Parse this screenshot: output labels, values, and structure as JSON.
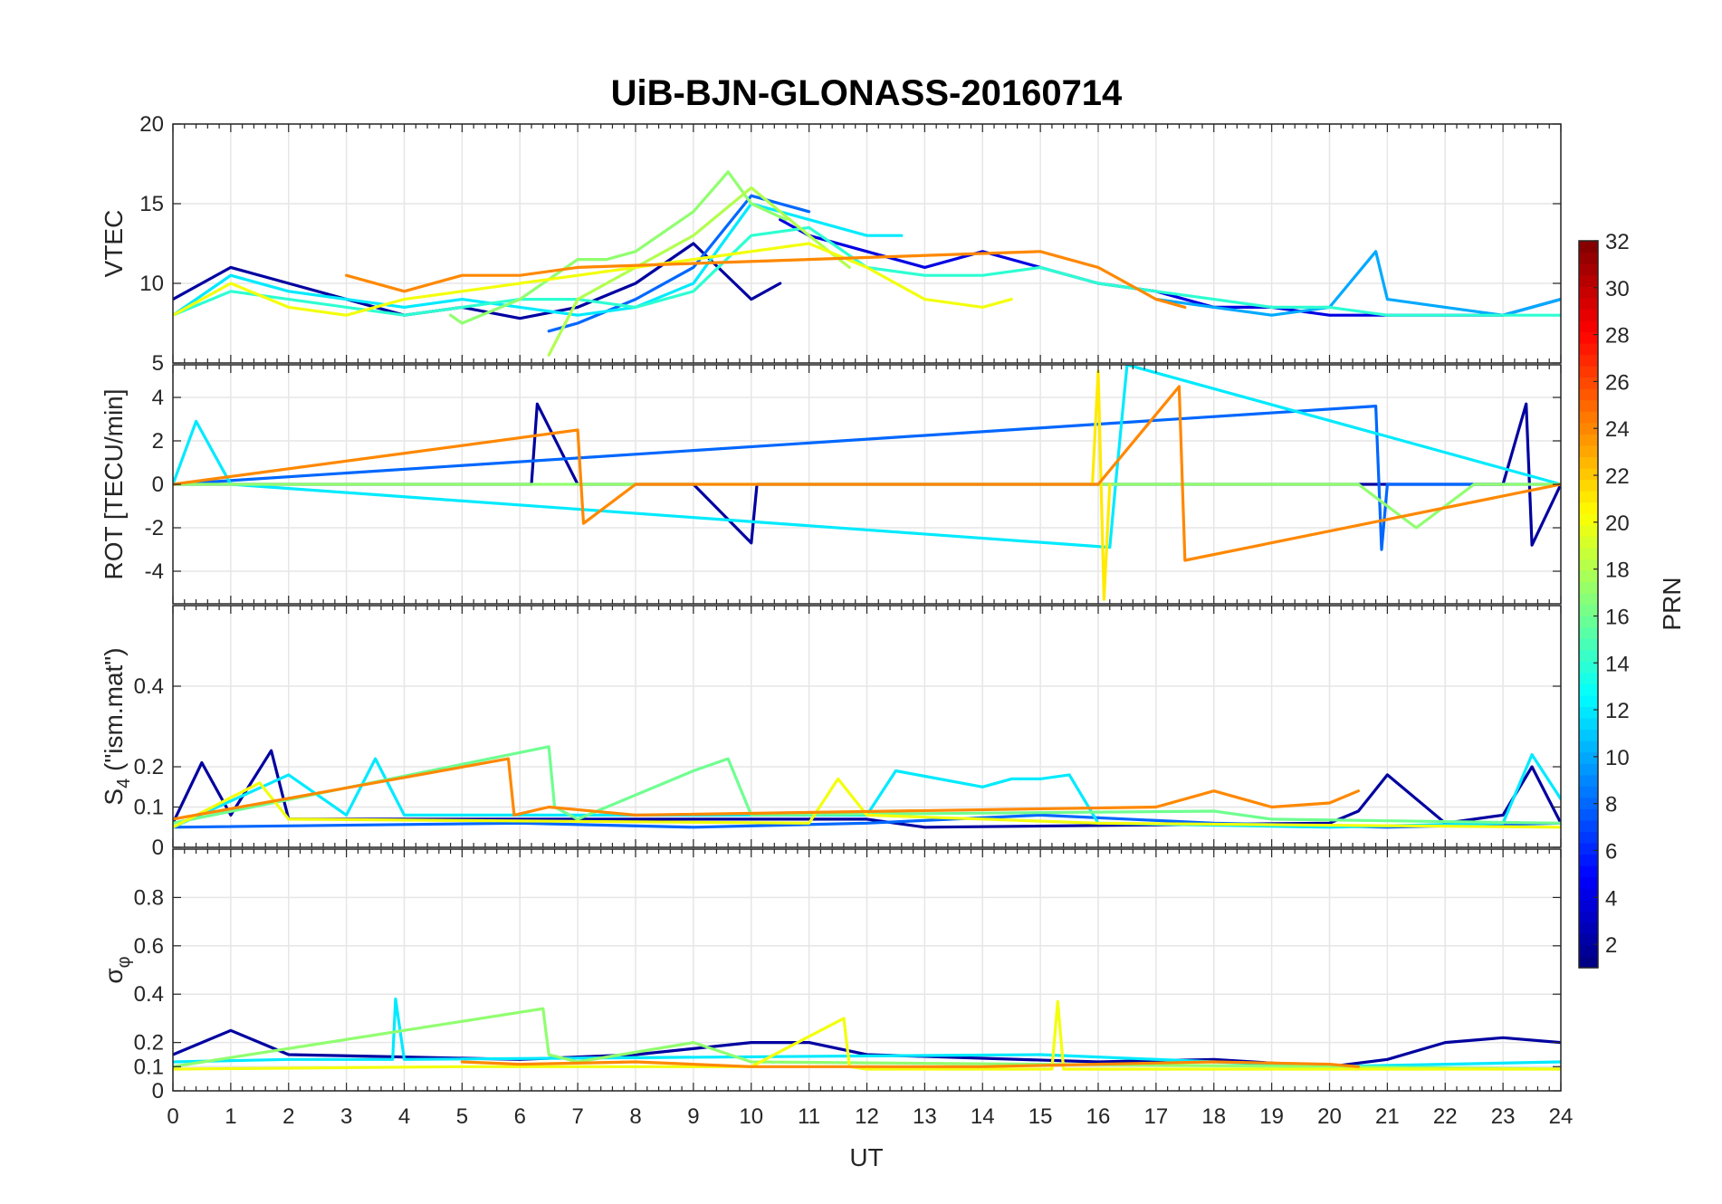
{
  "chart_data": {
    "type": "line",
    "title": "UiB-BJN-GLONASS-20160714",
    "xlabel": "UT",
    "xlim": [
      0,
      24
    ],
    "xticks": [
      0,
      1,
      2,
      3,
      4,
      5,
      6,
      7,
      8,
      9,
      10,
      11,
      12,
      13,
      14,
      15,
      16,
      17,
      18,
      19,
      20,
      21,
      22,
      23,
      24
    ],
    "grid": true,
    "colormap": "jet",
    "colorbar": {
      "label": "PRN",
      "range": [
        1,
        32
      ],
      "ticks": [
        2,
        4,
        6,
        8,
        10,
        12,
        14,
        16,
        18,
        20,
        22,
        24,
        26,
        28,
        30,
        32
      ],
      "placement": "right"
    },
    "panels": [
      {
        "id": "vtec",
        "ylabel": "VTEC",
        "ylim": [
          5,
          20
        ],
        "yticks": [
          5,
          10,
          15,
          20
        ],
        "series": [
          {
            "prn": 2,
            "x": [
              0,
              1,
              2,
              3,
              4,
              5,
              6,
              7,
              8,
              9,
              10,
              10.5
            ],
            "y": [
              9,
              11,
              10,
              9,
              8,
              8.5,
              7.8,
              8.5,
              10,
              12.5,
              9,
              10
            ]
          },
          {
            "prn": 4,
            "x": [
              10.5,
              11,
              12,
              13,
              14,
              15,
              16,
              17,
              18,
              19,
              20,
              21,
              22,
              23,
              24
            ],
            "y": [
              14,
              13,
              12,
              11,
              12,
              11,
              10,
              9.5,
              8.5,
              8.5,
              8,
              8,
              8,
              8,
              9
            ]
          },
          {
            "prn": 8,
            "x": [
              6.5,
              7,
              8,
              9,
              10,
              11
            ],
            "y": [
              7,
              7.5,
              9,
              11,
              15.5,
              14.5
            ]
          },
          {
            "prn": 10,
            "x": [
              17,
              18,
              19,
              20,
              20.8,
              21,
              22,
              23,
              24
            ],
            "y": [
              9,
              8.5,
              8,
              8.5,
              12,
              9,
              8.5,
              8,
              9
            ]
          },
          {
            "prn": 12,
            "x": [
              0,
              1,
              2,
              3,
              4,
              5,
              6,
              7,
              8,
              9,
              10,
              11,
              12,
              12.6
            ],
            "y": [
              8,
              10.5,
              9.5,
              9,
              8.5,
              9,
              8.5,
              8,
              8.5,
              10,
              15,
              14,
              13,
              13
            ]
          },
          {
            "prn": 14,
            "x": [
              0,
              1,
              2,
              3,
              4,
              5,
              6,
              7,
              8,
              9,
              10,
              11,
              12,
              13,
              14,
              15,
              16,
              17,
              18,
              19,
              20,
              21,
              22,
              23,
              24
            ],
            "y": [
              8,
              9.5,
              9,
              8.5,
              8,
              8.5,
              9,
              9,
              8.5,
              9.5,
              13,
              13.5,
              11,
              10.5,
              10.5,
              11,
              10,
              9.5,
              9,
              8.5,
              8.5,
              8,
              8,
              8,
              8
            ]
          },
          {
            "prn": 17,
            "x": [
              4.8,
              5,
              6,
              7,
              7.5,
              8,
              9,
              9.6,
              10,
              10.6
            ],
            "y": [
              8,
              7.5,
              9,
              11.5,
              11.5,
              12,
              14.5,
              17,
              15,
              14
            ]
          },
          {
            "prn": 18,
            "x": [
              6.5,
              7,
              8,
              9,
              10,
              11,
              11.7
            ],
            "y": [
              5.5,
              9,
              11,
              13,
              16,
              13,
              11
            ]
          },
          {
            "prn": 20,
            "x": [
              0,
              1,
              2,
              3,
              4,
              11,
              12,
              13,
              14,
              14.5
            ],
            "y": [
              8,
              10,
              8.5,
              8,
              9,
              12.5,
              11,
              9,
              8.5,
              9
            ]
          },
          {
            "prn": 24,
            "x": [
              3,
              4,
              5,
              6,
              7,
              15,
              16,
              17,
              17.5
            ],
            "y": [
              10.5,
              9.5,
              10.5,
              10.5,
              11,
              12,
              11,
              9,
              8.5
            ]
          }
        ]
      },
      {
        "id": "rot",
        "ylabel": "ROT [TECU/min]",
        "ylim": [
          -5.5,
          5.5
        ],
        "yticks": [
          -4,
          -2,
          0,
          2,
          4
        ],
        "series": [
          {
            "prn": 2,
            "x": [
              0,
              6.2,
              6.3,
              7,
              8,
              9,
              10,
              10.1,
              23,
              23.4,
              23.5,
              24
            ],
            "y": [
              0,
              0,
              3.7,
              0,
              0,
              0,
              -2.7,
              0,
              0,
              3.7,
              -2.8,
              0
            ]
          },
          {
            "prn": 8,
            "x": [
              0,
              20.8,
              20.9,
              21,
              24
            ],
            "y": [
              0,
              3.6,
              -3,
              0,
              0
            ]
          },
          {
            "prn": 12,
            "x": [
              0,
              0.4,
              1,
              16.2,
              16.3,
              16.5,
              24
            ],
            "y": [
              0,
              2.9,
              0,
              -2.9,
              0,
              5.5,
              0
            ]
          },
          {
            "prn": 17,
            "x": [
              0,
              12,
              13,
              20.5,
              21.5,
              22.5,
              24
            ],
            "y": [
              0,
              0,
              0,
              0,
              -2,
              0,
              0
            ]
          },
          {
            "prn": 21,
            "x": [
              15.9,
              16,
              16.1,
              16.2
            ],
            "y": [
              0,
              5.2,
              -5.3,
              0
            ]
          },
          {
            "prn": 24,
            "x": [
              0,
              7,
              7.1,
              8,
              16,
              17.4,
              17.5,
              24
            ],
            "y": [
              0,
              2.5,
              -1.8,
              0,
              0,
              4.5,
              -3.5,
              0
            ]
          }
        ]
      },
      {
        "id": "s4",
        "ylabel": "S4 (\"ism.mat\")",
        "ylabel_main": "S",
        "ylabel_sub": "4",
        "ylabel_rest": " (\"ism.mat\")",
        "ylim": [
          0,
          0.6
        ],
        "yticks": [
          0,
          0.1,
          0.2,
          0.4
        ],
        "series": [
          {
            "prn": 2,
            "x": [
              0,
              0.5,
              1,
              1.7,
              2,
              12,
              13,
              20,
              20.5,
              21,
              22,
              23,
              23.5,
              24
            ],
            "y": [
              0.06,
              0.21,
              0.08,
              0.24,
              0.07,
              0.07,
              0.05,
              0.06,
              0.09,
              0.18,
              0.06,
              0.08,
              0.2,
              0.06
            ]
          },
          {
            "prn": 8,
            "x": [
              0,
              6,
              9,
              12,
              15,
              18,
              21,
              24
            ],
            "y": [
              0.05,
              0.06,
              0.05,
              0.06,
              0.08,
              0.06,
              0.05,
              0.06
            ]
          },
          {
            "prn": 12,
            "x": [
              0,
              2,
              3,
              3.5,
              4,
              12,
              12.5,
              14,
              14.5,
              15,
              15.5,
              16,
              20,
              23,
              23.5,
              24
            ],
            "y": [
              0.05,
              0.18,
              0.08,
              0.22,
              0.08,
              0.08,
              0.19,
              0.15,
              0.17,
              0.17,
              0.18,
              0.06,
              0.05,
              0.06,
              0.23,
              0.12
            ]
          },
          {
            "prn": 16,
            "x": [
              0,
              6.5,
              6.6,
              7,
              9,
              9.6,
              10,
              18,
              19,
              24
            ],
            "y": [
              0.06,
              0.25,
              0.1,
              0.07,
              0.19,
              0.22,
              0.08,
              0.09,
              0.07,
              0.06
            ]
          },
          {
            "prn": 20,
            "x": [
              0,
              1.5,
              2,
              11,
              11.5,
              12,
              16,
              24
            ],
            "y": [
              0.05,
              0.16,
              0.07,
              0.06,
              0.17,
              0.08,
              0.06,
              0.05
            ]
          },
          {
            "prn": 24,
            "x": [
              0,
              5.8,
              5.9,
              6.5,
              8,
              17,
              18,
              19,
              20,
              20.5
            ],
            "y": [
              0.07,
              0.22,
              0.08,
              0.1,
              0.08,
              0.1,
              0.14,
              0.1,
              0.11,
              0.14
            ]
          }
        ]
      },
      {
        "id": "sigma",
        "ylabel": "σφ",
        "ylabel_main": "σ",
        "ylabel_sub": "φ",
        "ylim": [
          0,
          1
        ],
        "yticks": [
          0,
          0.1,
          0.2,
          0.4,
          0.6,
          0.8
        ],
        "series": [
          {
            "prn": 2,
            "x": [
              0,
              1,
              2,
              4,
              6,
              8,
              10,
              11,
              12,
              16,
              18,
              20,
              21,
              22,
              23,
              24
            ],
            "y": [
              0.15,
              0.25,
              0.15,
              0.14,
              0.13,
              0.15,
              0.2,
              0.2,
              0.15,
              0.12,
              0.13,
              0.1,
              0.13,
              0.2,
              0.22,
              0.2
            ]
          },
          {
            "prn": 12,
            "x": [
              0,
              2,
              3.8,
              3.85,
              4,
              15,
              20,
              24
            ],
            "y": [
              0.12,
              0.13,
              0.13,
              0.38,
              0.13,
              0.15,
              0.1,
              0.12
            ]
          },
          {
            "prn": 17,
            "x": [
              0,
              6.4,
              6.5,
              7,
              9,
              10,
              20,
              24
            ],
            "y": [
              0.1,
              0.34,
              0.15,
              0.12,
              0.2,
              0.12,
              0.1,
              0.09
            ]
          },
          {
            "prn": 20,
            "x": [
              0,
              5,
              10,
              11.6,
              11.7,
              12,
              15.2,
              15.3,
              15.4,
              24
            ],
            "y": [
              0.09,
              0.1,
              0.1,
              0.3,
              0.1,
              0.09,
              0.09,
              0.37,
              0.09,
              0.09
            ]
          },
          {
            "prn": 24,
            "x": [
              5,
              6,
              8,
              10,
              14,
              16,
              18,
              20,
              20.5
            ],
            "y": [
              0.12,
              0.11,
              0.12,
              0.1,
              0.1,
              0.11,
              0.12,
              0.11,
              0.1
            ]
          }
        ]
      }
    ]
  }
}
